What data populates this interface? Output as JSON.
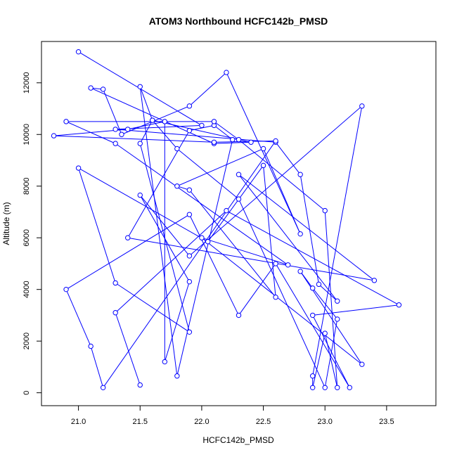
{
  "chart_data": {
    "type": "scatter",
    "title": "ATOM3 Northbound HCFC142b_PMSD",
    "xlabel": "HCFC142b_PMSD",
    "ylabel": "Altitude (m)",
    "xlim": [
      20.7,
      23.9
    ],
    "ylim": [
      -500,
      13600
    ],
    "xticks": [
      21.0,
      21.5,
      22.0,
      22.5,
      23.0,
      23.5
    ],
    "xtick_labels": [
      "21.0",
      "21.5",
      "22.0",
      "22.5",
      "23.0",
      "23.5"
    ],
    "yticks": [
      0,
      2000,
      4000,
      6000,
      8000,
      10000,
      12000
    ],
    "ytick_labels": [
      "0",
      "2000",
      "4000",
      "6000",
      "8000",
      "10000",
      "12000"
    ],
    "grid": false,
    "connected": true,
    "series": [
      {
        "color": "#0000ff",
        "points": [
          [
            21.0,
            13200
          ],
          [
            22.0,
            10350
          ],
          [
            21.3,
            10200
          ],
          [
            22.6,
            9700
          ],
          [
            22.8,
            8450
          ],
          [
            22.95,
            4200
          ],
          [
            23.1,
            3550
          ],
          [
            22.3,
            8450
          ],
          [
            23.4,
            4350
          ],
          [
            21.4,
            6000
          ],
          [
            21.9,
            10150
          ],
          [
            22.1,
            10350
          ],
          [
            22.25,
            9800
          ],
          [
            21.8,
            650
          ],
          [
            21.5,
            11850
          ],
          [
            21.6,
            10550
          ],
          [
            22.4,
            9700
          ],
          [
            22.1,
            9650
          ],
          [
            21.1,
            11800
          ],
          [
            21.2,
            11750
          ],
          [
            21.35,
            10000
          ],
          [
            21.9,
            11100
          ],
          [
            22.2,
            12400
          ],
          [
            22.8,
            6150
          ],
          [
            22.5,
            9450
          ],
          [
            21.8,
            8000
          ],
          [
            21.9,
            7850
          ],
          [
            22.6,
            3700
          ],
          [
            22.5,
            8800
          ],
          [
            22.05,
            5850
          ],
          [
            21.0,
            8700
          ],
          [
            21.3,
            4250
          ],
          [
            21.9,
            2350
          ],
          [
            21.5,
            9650
          ],
          [
            21.6,
            10550
          ],
          [
            21.8,
            9450
          ],
          [
            22.3,
            7500
          ],
          [
            23.0,
            200
          ],
          [
            23.1,
            2850
          ],
          [
            22.9,
            4050
          ],
          [
            22.8,
            4700
          ],
          [
            23.3,
            1100
          ],
          [
            22.0,
            6000
          ],
          [
            22.7,
            4950
          ],
          [
            21.3,
            9650
          ],
          [
            20.9,
            10500
          ],
          [
            22.1,
            10500
          ],
          [
            22.3,
            9800
          ],
          [
            23.0,
            7050
          ],
          [
            23.1,
            200
          ],
          [
            23.0,
            2300
          ],
          [
            22.9,
            200
          ],
          [
            22.9,
            650
          ],
          [
            23.3,
            11100
          ],
          [
            21.9,
            5300
          ],
          [
            21.5,
            7650
          ],
          [
            21.9,
            4300
          ],
          [
            21.7,
            1200
          ],
          [
            21.7,
            10500
          ],
          [
            21.4,
            10200
          ],
          [
            20.8,
            9950
          ],
          [
            22.1,
            9700
          ],
          [
            22.6,
            9750
          ],
          [
            21.2,
            200
          ],
          [
            21.1,
            1800
          ],
          [
            20.9,
            4000
          ],
          [
            21.9,
            6900
          ],
          [
            22.3,
            3000
          ],
          [
            22.6,
            5000
          ],
          [
            23.2,
            200
          ],
          [
            22.9,
            3000
          ],
          [
            23.6,
            3400
          ],
          [
            22.2,
            7050
          ],
          [
            21.3,
            3100
          ],
          [
            21.5,
            300
          ]
        ]
      }
    ]
  }
}
